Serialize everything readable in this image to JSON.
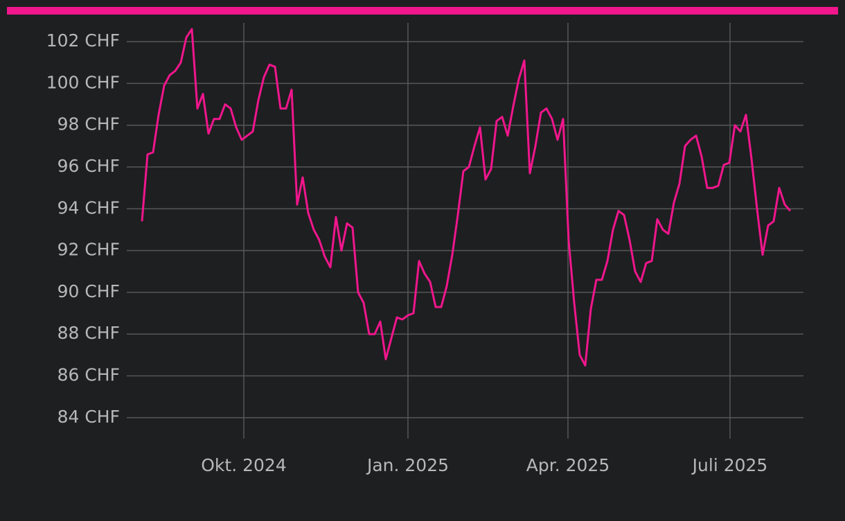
{
  "chart_data": {
    "type": "line",
    "color": "#f0168c",
    "series": [
      {
        "values": [
          93.4,
          96.6,
          96.7,
          98.5,
          99.9,
          100.4,
          100.6,
          101,
          102.2,
          102.6,
          98.8,
          99.5,
          97.6,
          98.3,
          98.3,
          99,
          98.8,
          97.9,
          97.3,
          97.5,
          97.7,
          99.2,
          100.3,
          100.9,
          100.8,
          98.8,
          98.8,
          99.7,
          94.2,
          95.5,
          93.8,
          93,
          92.5,
          91.7,
          91.2,
          93.6,
          92,
          93.3,
          93.1,
          90,
          89.5,
          88,
          88,
          88.6,
          86.8,
          87.8,
          88.8,
          88.7,
          88.9,
          89,
          91.5,
          90.9,
          90.5,
          89.3,
          89.3,
          90.3,
          91.8,
          93.7,
          95.8,
          96,
          97,
          97.9,
          95.4,
          95.9,
          98.2,
          98.4,
          97.5,
          98.9,
          100.2,
          101.1,
          95.7,
          97,
          98.6,
          98.8,
          98.3,
          97.3,
          98.3,
          92.5,
          89.5,
          87,
          86.5,
          89.2,
          90.6,
          90.6,
          91.5,
          93,
          93.9,
          93.7,
          92.5,
          91,
          90.5,
          91.4,
          91.5,
          93.5,
          93,
          92.8,
          94.3,
          95.2,
          97,
          97.3,
          97.5,
          96.5,
          95,
          95,
          95.1,
          96.1,
          96.2,
          98,
          97.7,
          98.5,
          96.4,
          94,
          91.8,
          93.2,
          93.4,
          95,
          94.2,
          93.9
        ]
      }
    ],
    "xlim": [
      -2.75,
      119.375
    ],
    "xticks": [
      {
        "value": 18.375,
        "label": "Okt. 2024"
      },
      {
        "value": 48,
        "label": "Jan. 2025"
      },
      {
        "value": 76.875,
        "label": "Apr. 2025"
      },
      {
        "value": 106.125,
        "label": "Juli 2025"
      }
    ],
    "ylim": [
      83,
      102.9
    ],
    "yticks": [
      {
        "value": 84,
        "label": "84 CHF"
      },
      {
        "value": 86,
        "label": "86 CHF"
      },
      {
        "value": 88,
        "label": "88 CHF"
      },
      {
        "value": 90,
        "label": "90 CHF"
      },
      {
        "value": 92,
        "label": "92 CHF"
      },
      {
        "value": 94,
        "label": "94 CHF"
      },
      {
        "value": 96,
        "label": "96 CHF"
      },
      {
        "value": 98,
        "label": "98 CHF"
      },
      {
        "value": 100,
        "label": "100 CHF"
      },
      {
        "value": 102,
        "label": "102 CHF"
      }
    ],
    "grid": true
  }
}
